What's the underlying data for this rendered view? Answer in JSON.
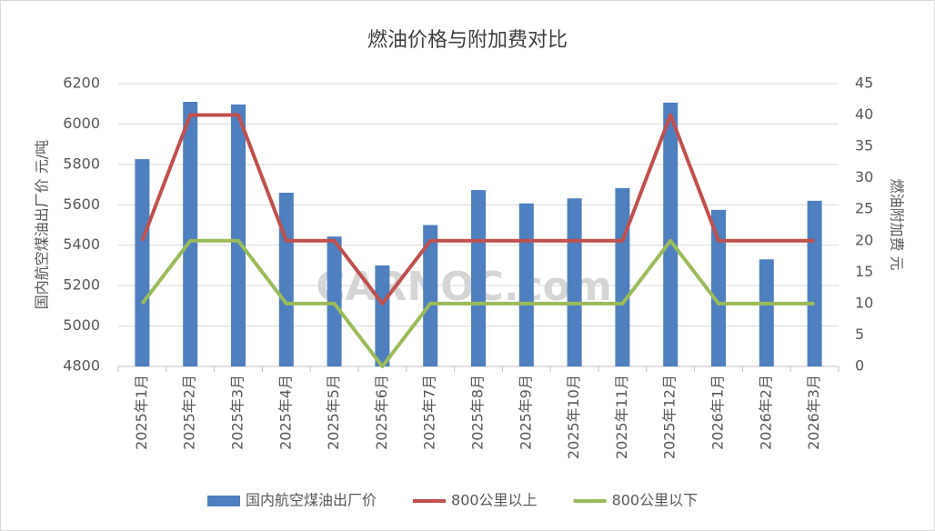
{
  "chart_data": {
    "type": "bar",
    "title": "燃油价格与附加费对比",
    "y_label": "国内航空煤油出厂价  元/吨",
    "y2_label": "燃油附加费  元",
    "watermark": "CARNOC.com",
    "categories": [
      "2025年1月",
      "2025年2月",
      "2025年3月",
      "2025年4月",
      "2025年5月",
      "2025年6月",
      "2025年7月",
      "2025年8月",
      "2025年9月",
      "2025年10月",
      "2025年11月",
      "2025年12月",
      "2026年1月",
      "2026年2月",
      "2026年3月"
    ],
    "series": [
      {
        "name": "国内航空煤油出厂价",
        "type": "bar",
        "color": "#4e7fbf",
        "values": [
          5826,
          6110,
          6097,
          5660,
          5443,
          5300,
          5500,
          5673,
          5607,
          5632,
          5683,
          6106,
          5575,
          5330,
          5620
        ]
      },
      {
        "name": "800公里以上",
        "type": "line",
        "axis": "y2",
        "color": "#c0504d",
        "values": [
          20,
          40,
          40,
          20,
          20,
          10,
          20,
          20,
          20,
          20,
          20,
          40,
          20,
          20,
          20
        ]
      },
      {
        "name": "800公里以下",
        "type": "line",
        "axis": "y2",
        "color": "#9bbb59",
        "values": [
          10,
          20,
          20,
          10,
          10,
          0,
          10,
          10,
          10,
          10,
          10,
          20,
          10,
          10,
          10
        ]
      }
    ],
    "ylim": [
      4800,
      6200
    ],
    "yticks": [
      4800,
      5000,
      5200,
      5400,
      5600,
      5800,
      6000,
      6200
    ],
    "y2lim": [
      0,
      45
    ],
    "y2ticks": [
      0,
      5,
      10,
      15,
      20,
      25,
      30,
      35,
      40,
      45
    ],
    "grid": true,
    "legend": "bottom"
  }
}
